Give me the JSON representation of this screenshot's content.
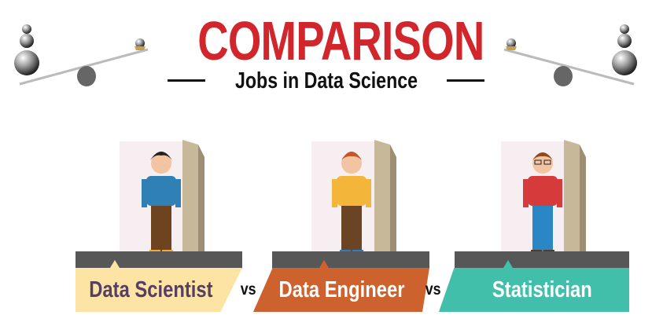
{
  "header": {
    "title": "COMPARISON",
    "subtitle": "Jobs in Data Science",
    "title_color": "#d0262c"
  },
  "decor": {
    "left_icon": "balance-scale-icon",
    "right_icon": "balance-scale-icon"
  },
  "roles": [
    {
      "label": "Data Scientist",
      "band_color": "#fde3a4",
      "text_color": "#553f63",
      "shirt": "#2f80b5",
      "pants": "#6e4420",
      "shoes": "#f2a93a"
    },
    {
      "label": "Data Engineer",
      "band_color": "#cd622f",
      "text_color": "#ffffff",
      "shirt": "#f3b53a",
      "pants": "#6b4423",
      "shoes": "#2b7fc0"
    },
    {
      "label": "Statistician",
      "band_color": "#41bfaa",
      "text_color": "#ffffff",
      "shirt": "#d63a3a",
      "pants": "#2a86c4",
      "shoes": "#5a3a22"
    }
  ],
  "separators": [
    "vs",
    "vs"
  ]
}
